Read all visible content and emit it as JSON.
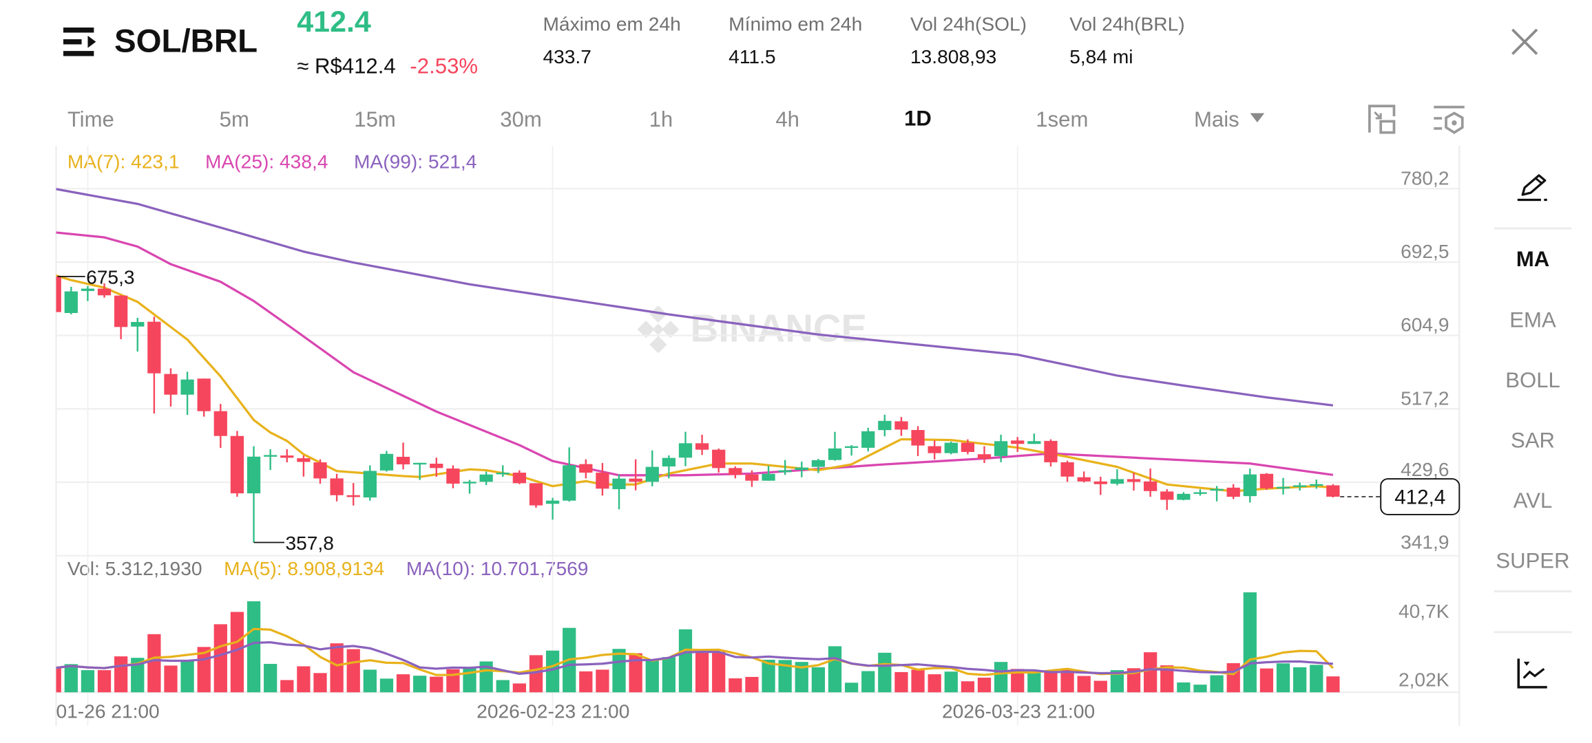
{
  "header": {
    "pair": "SOL/BRL",
    "last_price": "412.4",
    "approx_price": "≈ R$412.4",
    "change_pct": "-2.53%",
    "stats": [
      {
        "label": "Máximo em 24h",
        "value": "433.7"
      },
      {
        "label": "Mínimo em 24h",
        "value": "411.5"
      },
      {
        "label": "Vol 24h(SOL)",
        "value": "13.808,93"
      },
      {
        "label": "Vol 24h(BRL)",
        "value": "5,84 mi"
      }
    ],
    "icons": {
      "menu": "menu-arrow-icon",
      "close": "close-icon"
    }
  },
  "timeframes": {
    "items": [
      "Time",
      "5m",
      "15m",
      "30m",
      "1h",
      "4h",
      "1D",
      "1sem",
      "Mais"
    ],
    "active": "1D",
    "icons": [
      "exit-fullscreen-icon",
      "chart-settings-icon"
    ]
  },
  "indicators": {
    "items": [
      "MA",
      "EMA",
      "BOLL",
      "SAR",
      "AVL",
      "SUPER"
    ],
    "active": "MA",
    "icons": [
      "pencil-draw-icon",
      "indicator-chart-icon"
    ]
  },
  "watermark": "BINANCE",
  "colors": {
    "up": "#2ebd85",
    "down": "#f6465d",
    "ma7": "#e8b21c",
    "ma25": "#d946b0",
    "ma99": "#8a62bd",
    "vol_ma5": "#e8b21c",
    "vol_ma10": "#8a62bd"
  },
  "chart_data": {
    "type": "candlestick",
    "legend": {
      "ma7": "MA(7): 423,1",
      "ma25": "MA(25): 438,4",
      "ma99": "MA(99): 521,4",
      "vol": "Vol: 5.312,1930",
      "vol_ma5": "MA(5): 8.908,9134",
      "vol_ma10": "MA(10): 10.701,7569"
    },
    "y_ticks": [
      "780,2",
      "692,5",
      "604,9",
      "517,2",
      "429,6",
      "341,9"
    ],
    "y_tick_values": [
      780.2,
      692.5,
      604.9,
      517.2,
      429.6,
      341.9
    ],
    "ylim": [
      341.9,
      780.2
    ],
    "vol_ticks": [
      "40,7K",
      "2,02K"
    ],
    "x_labels": [
      "01-26 21:00",
      "2026-02-23 21:00",
      "2026-03-23 21:00"
    ],
    "x_label_index": [
      2,
      30,
      58
    ],
    "max_marker": {
      "index": 0,
      "value": 675.3,
      "label": "675,3"
    },
    "min_marker": {
      "index": 12,
      "value": 357.8,
      "label": "357,8"
    },
    "current_price": {
      "value": 412.4,
      "label": "412,4"
    },
    "candles_ohlc": [
      [
        675.3,
        675.3,
        632.8,
        632.8
      ],
      [
        631.7,
        663,
        630,
        657.5
      ],
      [
        658,
        664,
        646,
        660.8
      ],
      [
        660.8,
        667,
        650,
        652.8
      ],
      [
        652.5,
        653,
        600.5,
        615
      ],
      [
        615.5,
        626,
        585.7,
        621
      ],
      [
        621.3,
        627.4,
        511.7,
        559.7
      ],
      [
        558.9,
        565.7,
        520,
        534.2
      ],
      [
        534.2,
        561.6,
        510.1,
        552.3
      ],
      [
        553.4,
        553.4,
        508,
        514.5
      ],
      [
        514.5,
        523.2,
        470.6,
        484.9
      ],
      [
        484.9,
        490.9,
        412.3,
        416.4
      ],
      [
        416.4,
        472.6,
        357.8,
        460.2
      ],
      [
        460.2,
        469,
        444.3,
        462.1
      ],
      [
        461.6,
        469,
        453.4,
        458.9
      ],
      [
        458.3,
        461.6,
        436.4,
        453.9
      ],
      [
        453.4,
        457,
        427.9,
        434.2
      ],
      [
        434.2,
        439.7,
        406.8,
        414.2
      ],
      [
        414.2,
        428.7,
        401.9,
        412
      ],
      [
        411.5,
        449.8,
        407.6,
        443.2
      ],
      [
        443.7,
        467,
        442.4,
        463.5
      ],
      [
        460,
        477,
        445,
        451
      ],
      [
        451.2,
        453,
        432.4,
        452.8
      ],
      [
        451.8,
        459,
        436.2,
        446.6
      ],
      [
        446,
        449.9,
        422.5,
        428
      ],
      [
        428.5,
        432.4,
        416,
        430.2
      ],
      [
        430.2,
        442.5,
        426.3,
        438.9
      ],
      [
        439.5,
        449.9,
        436.2,
        441.1
      ],
      [
        441.1,
        443.9,
        427.4,
        428.5
      ],
      [
        428.5,
        428.5,
        399.2,
        402
      ],
      [
        403.9,
        411,
        385,
        407.7
      ],
      [
        407.7,
        471.3,
        406.6,
        449.9
      ],
      [
        451.3,
        457,
        434.3,
        441.1
      ],
      [
        441.1,
        452.6,
        413.7,
        422
      ],
      [
        421.4,
        438.9,
        397.3,
        434
      ],
      [
        434,
        457,
        420,
        430.2
      ],
      [
        430.2,
        467.7,
        424.7,
        448
      ],
      [
        448.5,
        461.7,
        434.3,
        458.7
      ],
      [
        459,
        489.9,
        448.8,
        476.2
      ],
      [
        476.2,
        486.3,
        462.2,
        468.5
      ],
      [
        468.5,
        469.9,
        441.1,
        446.6
      ],
      [
        446.6,
        448.5,
        434.3,
        438.4
      ],
      [
        438.9,
        443.9,
        424.1,
        431.5
      ],
      [
        431.5,
        449.3,
        431.5,
        439.7
      ],
      [
        441.7,
        456.2,
        438.4,
        443.9
      ],
      [
        444.4,
        454.3,
        435.6,
        447.2
      ],
      [
        448,
        457.6,
        440.6,
        456
      ],
      [
        456.2,
        489.8,
        455.4,
        470
      ],
      [
        470.8,
        474,
        461.5,
        472.6
      ],
      [
        470.8,
        494.7,
        466.4,
        490.5
      ],
      [
        491.9,
        510.3,
        484.5,
        502.9
      ],
      [
        502.4,
        507.6,
        485,
        492.5
      ],
      [
        492,
        496.6,
        460.9,
        473.5
      ],
      [
        472.7,
        479.6,
        456.8,
        464.4
      ],
      [
        464.4,
        478.2,
        463,
        476.8
      ],
      [
        476.8,
        480.9,
        463,
        465.8
      ],
      [
        463.1,
        472.7,
        452.6,
        457.6
      ],
      [
        460.9,
        486.4,
        453.5,
        478.7
      ],
      [
        479.5,
        483.7,
        465.8,
        475.4
      ],
      [
        475.4,
        487.8,
        475.4,
        478.7
      ],
      [
        479,
        480.9,
        448.5,
        453.5
      ],
      [
        453.5,
        455.4,
        430.1,
        436.4
      ],
      [
        435.6,
        442.5,
        429.5,
        430.6
      ],
      [
        430.6,
        436.2,
        414.5,
        427.4
      ],
      [
        427.9,
        445.2,
        426,
        433.4
      ],
      [
        433.4,
        441,
        419.7,
        430.1
      ],
      [
        430.6,
        446,
        412.3,
        419.1
      ],
      [
        418.6,
        421.3,
        396.6,
        408.7
      ],
      [
        408.7,
        417.7,
        408.1,
        415.8
      ],
      [
        415.8,
        421.3,
        413.6,
        417.7
      ],
      [
        419.6,
        425.2,
        406.8,
        421.7
      ],
      [
        423.2,
        427.4,
        409.5,
        412.3
      ],
      [
        413.1,
        446,
        405.4,
        439
      ],
      [
        439.7,
        440.6,
        420.5,
        422.4
      ],
      [
        422.4,
        434.8,
        415,
        424.1
      ],
      [
        424.1,
        429.3,
        419.7,
        426
      ],
      [
        425.3,
        432.9,
        421.9,
        427.4
      ],
      [
        426,
        427.4,
        411.5,
        412.4
      ]
    ],
    "volumes_k": [
      8.8,
      10.4,
      7.9,
      7.9,
      13.6,
      13.0,
      22.8,
      9.8,
      11.9,
      17.5,
      26.9,
      32.0,
      36.4,
      10.5,
      3.8,
      9.5,
      6.7,
      19.0,
      16.6,
      8.1,
      4.4,
      6.2,
      5.6,
      5.2,
      8.3,
      8.6,
      11.5,
      3.8,
      2.4,
      14.1,
      16.0,
      25.4,
      7.4,
      8.1,
      16.7,
      14.9,
      12.1,
      13.3,
      24.8,
      16.2,
      15.5,
      4.5,
      5.1,
      12.2,
      12.1,
      11.3,
      9.1,
      17.8,
      2.7,
      7.5,
      15.1,
      7.1,
      8.1,
      6.2,
      7.3,
      3.3,
      4.8,
      11.3,
      8.4,
      6.7,
      7.6,
      8.1,
      5.5,
      3.5,
      7.9,
      8.7,
      15.3,
      9.9,
      2.8,
      1.9,
      5.8,
      10.8,
      40.1,
      8.6,
      10.7,
      9.1,
      10.1,
      5.312
    ],
    "ma7": [
      [
        0,
        677
      ],
      [
        1,
        671
      ],
      [
        3,
        662
      ],
      [
        5,
        645
      ],
      [
        8,
        600
      ],
      [
        10,
        556
      ],
      [
        12,
        504
      ],
      [
        13,
        489
      ],
      [
        14,
        479
      ],
      [
        15,
        463
      ],
      [
        17,
        443
      ],
      [
        19,
        440
      ],
      [
        21,
        437
      ],
      [
        22,
        436
      ],
      [
        25,
        445
      ],
      [
        26,
        444
      ],
      [
        28,
        437
      ],
      [
        30,
        425
      ],
      [
        32,
        431
      ],
      [
        33,
        427
      ],
      [
        35,
        427
      ],
      [
        37,
        440
      ],
      [
        40,
        452
      ],
      [
        42,
        452
      ],
      [
        46,
        444
      ],
      [
        48,
        451
      ],
      [
        51,
        481
      ],
      [
        54,
        480
      ],
      [
        58,
        471
      ],
      [
        61,
        460
      ],
      [
        64,
        448
      ],
      [
        67,
        427
      ],
      [
        71,
        419
      ],
      [
        73,
        422
      ],
      [
        76,
        425
      ],
      [
        77,
        423.1
      ]
    ],
    "ma25": [
      [
        0,
        728
      ],
      [
        3,
        722
      ],
      [
        5,
        711
      ],
      [
        7,
        690
      ],
      [
        10,
        669
      ],
      [
        12,
        646
      ],
      [
        14,
        618
      ],
      [
        18,
        561
      ],
      [
        23,
        514
      ],
      [
        28,
        474
      ],
      [
        30,
        455
      ],
      [
        34,
        438
      ],
      [
        38,
        438
      ],
      [
        42,
        440
      ],
      [
        50,
        451
      ],
      [
        56,
        458
      ],
      [
        60,
        464
      ],
      [
        64,
        460
      ],
      [
        68,
        456
      ],
      [
        72,
        452
      ],
      [
        77,
        438.4
      ]
    ],
    "ma99": [
      [
        0,
        780
      ],
      [
        5,
        762
      ],
      [
        11,
        728
      ],
      [
        15,
        705
      ],
      [
        18,
        692
      ],
      [
        25,
        666
      ],
      [
        31,
        648
      ],
      [
        37,
        630
      ],
      [
        46,
        606
      ],
      [
        52,
        594
      ],
      [
        58,
        582
      ],
      [
        64,
        557
      ],
      [
        68,
        545
      ],
      [
        73,
        531
      ],
      [
        77,
        521.4
      ]
    ]
  }
}
